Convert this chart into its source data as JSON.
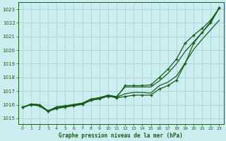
{
  "title": "Graphe pression niveau de la mer (hPa)",
  "background_color": "#cceef0",
  "grid_color": "#aad4d8",
  "line_color": "#1a5c1a",
  "x_ticks": [
    0,
    1,
    2,
    3,
    4,
    5,
    6,
    7,
    8,
    9,
    10,
    11,
    12,
    13,
    14,
    15,
    16,
    17,
    18,
    19,
    20,
    21,
    22,
    23
  ],
  "y_ticks": [
    1015,
    1016,
    1017,
    1018,
    1019,
    1020,
    1021,
    1022,
    1023
  ],
  "ylim": [
    1014.6,
    1023.5
  ],
  "xlim": [
    -0.5,
    23.5
  ],
  "line1": [
    1015.8,
    1016.0,
    1015.95,
    1015.55,
    1015.75,
    1015.85,
    1015.95,
    1016.05,
    1016.3,
    1016.45,
    1016.7,
    1016.6,
    1017.3,
    1017.3,
    1017.3,
    1017.3,
    1017.75,
    1018.3,
    1019.0,
    1019.9,
    1020.6,
    1021.3,
    1022.1,
    1023.1
  ],
  "line2": [
    1015.8,
    1016.05,
    1016.0,
    1015.55,
    1015.8,
    1015.9,
    1016.0,
    1016.1,
    1016.4,
    1016.5,
    1016.65,
    1016.5,
    1016.6,
    1016.7,
    1016.7,
    1016.7,
    1017.15,
    1017.4,
    1017.8,
    1019.0,
    1020.5,
    1021.3,
    1022.0,
    1023.1
  ],
  "line3": [
    1015.8,
    1016.05,
    1016.0,
    1015.55,
    1015.85,
    1015.92,
    1016.02,
    1016.12,
    1016.42,
    1016.52,
    1016.7,
    1016.55,
    1016.8,
    1016.9,
    1016.9,
    1016.85,
    1017.4,
    1017.65,
    1018.1,
    1019.05,
    1020.05,
    1020.8,
    1021.5,
    1022.2
  ],
  "line4": [
    1015.8,
    1016.0,
    1015.9,
    1015.5,
    1015.72,
    1015.82,
    1015.92,
    1016.02,
    1016.32,
    1016.42,
    1016.62,
    1016.52,
    1017.4,
    1017.4,
    1017.4,
    1017.45,
    1018.0,
    1018.6,
    1019.35,
    1020.5,
    1021.1,
    1021.6,
    1022.2,
    1023.1
  ]
}
